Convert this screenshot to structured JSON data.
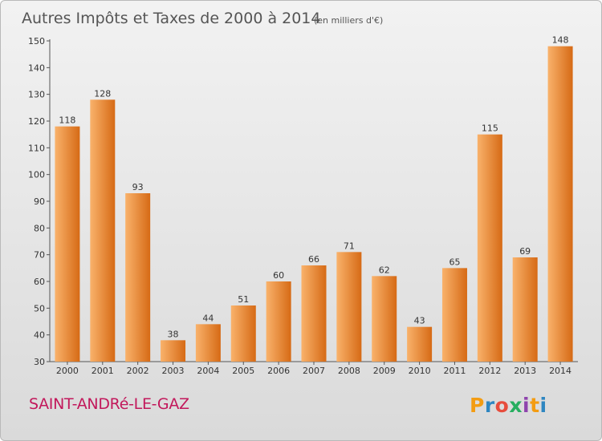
{
  "title": "Autres Impôts et Taxes de 2000 à 2014",
  "subtitle": "(en milliers d'€)",
  "commune": "SAINT-ANDRé-LE-GAZ",
  "brand": {
    "letters": [
      "P",
      "r",
      "o",
      "x",
      "i",
      "t",
      "i"
    ],
    "colors": [
      "#f39c12",
      "#2e86c1",
      "#e74c3c",
      "#27ae60",
      "#8e44ad",
      "#f39c12",
      "#2e86c1"
    ]
  },
  "colors": {
    "bar_top": "#f9b26b",
    "bar_bottom": "#d66a15",
    "text": "#333333",
    "title": "#555555",
    "commune": "#c2185b"
  },
  "chart_data": {
    "type": "bar",
    "categories": [
      "2000",
      "2001",
      "2002",
      "2003",
      "2004",
      "2005",
      "2006",
      "2007",
      "2008",
      "2009",
      "2010",
      "2011",
      "2012",
      "2013",
      "2014"
    ],
    "values": [
      118,
      128,
      93,
      38,
      44,
      51,
      60,
      66,
      71,
      62,
      43,
      65,
      115,
      69,
      148
    ],
    "ylim": [
      30,
      150
    ],
    "yticks": [
      30,
      40,
      50,
      60,
      70,
      80,
      90,
      100,
      110,
      120,
      130,
      140,
      150
    ],
    "grid": false
  }
}
